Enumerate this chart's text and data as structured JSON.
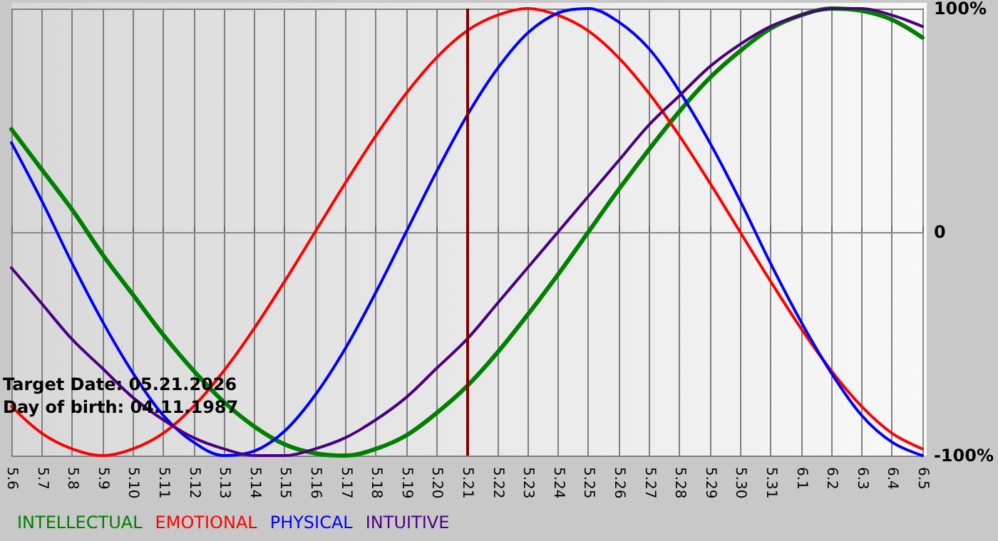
{
  "chart_data": {
    "type": "line",
    "categories": [
      "5.6",
      "5.7",
      "5.8",
      "5.9",
      "5.10",
      "5.11",
      "5.12",
      "5.13",
      "5.14",
      "5.15",
      "5.16",
      "5.17",
      "5.18",
      "5.19",
      "5.20",
      "5.21",
      "5.22",
      "5.23",
      "5.24",
      "5.25",
      "5.26",
      "5.27",
      "5.28",
      "5.29",
      "5.30",
      "5.31",
      "6.1",
      "6.2",
      "6.3",
      "6.4",
      "6.5"
    ],
    "series": [
      {
        "name": "INTELLECTUAL",
        "color": "#008000",
        "values": [
          46,
          28,
          10,
          -10,
          -28,
          -46,
          -62,
          -76,
          -87,
          -95,
          -99,
          -100,
          -97,
          -91,
          -81,
          -69,
          -54,
          -37,
          -19,
          0,
          19,
          37,
          54,
          69,
          81,
          91,
          97,
          100,
          99,
          95,
          87
        ]
      },
      {
        "name": "EMOTIONAL",
        "color": "#ff0000",
        "values": [
          -78,
          -90,
          -97,
          -100,
          -97,
          -90,
          -78,
          -62,
          -43,
          -22,
          0,
          22,
          43,
          62,
          78,
          90,
          97,
          100,
          97,
          90,
          78,
          62,
          43,
          22,
          0,
          -22,
          -43,
          -62,
          -78,
          -90,
          -97
        ]
      },
      {
        "name": "PHYSICAL",
        "color": "#0000ff",
        "values": [
          40,
          14,
          -14,
          -40,
          -63,
          -82,
          -94,
          -100,
          -98,
          -89,
          -73,
          -52,
          -27,
          0,
          27,
          52,
          73,
          89,
          98,
          100,
          94,
          82,
          63,
          40,
          14,
          -14,
          -40,
          -63,
          -82,
          -94,
          -100
        ]
      },
      {
        "name": "INTUITIVE",
        "color": "#4b0082",
        "values": [
          -16,
          -32,
          -48,
          -61,
          -74,
          -84,
          -92,
          -97,
          -100,
          -100,
          -97,
          -92,
          -84,
          -74,
          -61,
          -48,
          -32,
          -16,
          0,
          16,
          32,
          48,
          61,
          74,
          84,
          92,
          97,
          100,
          100,
          97,
          92
        ]
      }
    ],
    "ylim": [
      -100,
      100
    ],
    "yticks": [
      {
        "value": -100,
        "label": "-100%"
      },
      0,
      {
        "value": 100,
        "label": "100%"
      }
    ],
    "ref_lines": [
      {
        "axis": "x",
        "value": "5.21",
        "color": "#800000"
      }
    ],
    "annotations": [
      "Target Date: 05.21.2026",
      "Day of birth: 04.11.1987"
    ],
    "grid": true,
    "legend": "bottom left",
    "marker": "none",
    "line_style": "solid"
  }
}
